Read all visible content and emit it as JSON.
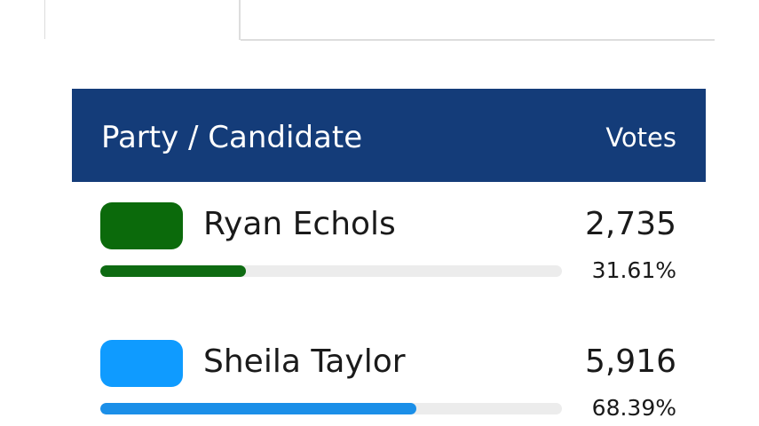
{
  "header": {
    "candidate": "Party / Candidate",
    "votes": "Votes"
  },
  "rows": [
    {
      "name": "Ryan Echols",
      "color": "#0b6a0b",
      "bar_color": "#0e6b12",
      "votes": "2,735",
      "percent": {
        "value": 31.61,
        "label": "31.61%"
      }
    },
    {
      "name": "Sheila Taylor",
      "color": "#0f9bff",
      "bar_color": "#1b8fe8",
      "votes": "5,916",
      "percent": {
        "value": 68.39,
        "label": "68.39%"
      }
    }
  ]
}
